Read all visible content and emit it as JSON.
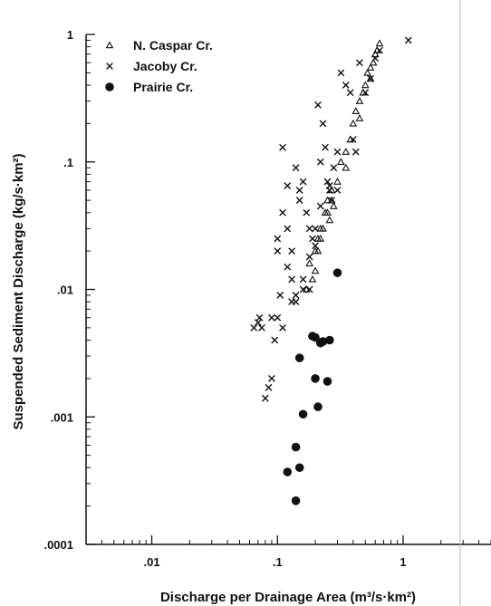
{
  "chart_data": {
    "type": "scatter",
    "title": "",
    "xlabel": "Discharge per Drainage Area (m³/s·km²)",
    "ylabel": "Suspended Sediment Discharge (kg/s·km²)",
    "x_scale": "log",
    "y_scale": "log",
    "xlim": [
      0.003,
      5
    ],
    "ylim": [
      0.0001,
      1
    ],
    "x_ticks": [
      ".01",
      ".1",
      "1"
    ],
    "y_ticks": [
      ".0001",
      ".001",
      ".01",
      ".1",
      "1"
    ],
    "legend_position": "top-left",
    "grid": false,
    "series": [
      {
        "name": "N. Caspar Cr.",
        "marker": "triangle",
        "color": "#111111",
        "x": [
          0.17,
          0.19,
          0.2,
          0.21,
          0.22,
          0.23,
          0.24,
          0.25,
          0.26,
          0.27,
          0.28,
          0.3,
          0.32,
          0.35,
          0.38,
          0.4,
          0.42,
          0.45,
          0.48,
          0.5,
          0.52,
          0.55,
          0.58,
          0.6,
          0.62,
          0.65,
          0.25,
          0.22,
          0.2,
          0.18,
          0.21,
          0.27,
          0.35,
          0.45,
          0.55
        ],
        "y": [
          0.01,
          0.012,
          0.014,
          0.02,
          0.025,
          0.03,
          0.04,
          0.05,
          0.035,
          0.06,
          0.045,
          0.07,
          0.1,
          0.12,
          0.15,
          0.2,
          0.25,
          0.3,
          0.35,
          0.4,
          0.5,
          0.55,
          0.6,
          0.7,
          0.75,
          0.85,
          0.04,
          0.03,
          0.02,
          0.016,
          0.025,
          0.05,
          0.09,
          0.22,
          0.45
        ]
      },
      {
        "name": "Jacoby Cr.",
        "marker": "x",
        "color": "#111111",
        "x": [
          0.065,
          0.07,
          0.072,
          0.075,
          0.08,
          0.085,
          0.09,
          0.095,
          0.1,
          0.1,
          0.1,
          0.105,
          0.11,
          0.11,
          0.12,
          0.12,
          0.13,
          0.13,
          0.14,
          0.14,
          0.15,
          0.15,
          0.16,
          0.16,
          0.17,
          0.18,
          0.18,
          0.19,
          0.2,
          0.2,
          0.21,
          0.22,
          0.23,
          0.24,
          0.25,
          0.26,
          0.27,
          0.28,
          0.3,
          0.3,
          0.32,
          0.35,
          0.38,
          0.4,
          0.42,
          0.45,
          0.5,
          0.55,
          0.6,
          0.65,
          1.1,
          0.14,
          0.16,
          0.13,
          0.12,
          0.18,
          0.22,
          0.26,
          0.09,
          0.11
        ],
        "y": [
          0.005,
          0.0055,
          0.006,
          0.005,
          0.0014,
          0.0017,
          0.002,
          0.004,
          0.006,
          0.02,
          0.025,
          0.009,
          0.13,
          0.04,
          0.015,
          0.065,
          0.02,
          0.012,
          0.09,
          0.008,
          0.06,
          0.05,
          0.07,
          0.01,
          0.04,
          0.03,
          0.018,
          0.025,
          0.03,
          0.022,
          0.28,
          0.1,
          0.2,
          0.13,
          0.07,
          0.065,
          0.05,
          0.09,
          0.12,
          0.06,
          0.5,
          0.4,
          0.35,
          0.15,
          0.12,
          0.6,
          0.35,
          0.45,
          0.65,
          0.75,
          0.9,
          0.009,
          0.012,
          0.008,
          0.03,
          0.01,
          0.045,
          0.06,
          0.006,
          0.005
        ]
      },
      {
        "name": "Prairie Cr.",
        "marker": "circle",
        "color": "#111111",
        "x": [
          0.12,
          0.14,
          0.14,
          0.15,
          0.15,
          0.16,
          0.19,
          0.2,
          0.2,
          0.21,
          0.22,
          0.23,
          0.25,
          0.26,
          0.3
        ],
        "y": [
          0.00037,
          0.00022,
          0.00058,
          0.0004,
          0.0029,
          0.00105,
          0.0043,
          0.002,
          0.0042,
          0.0012,
          0.0038,
          0.0039,
          0.0019,
          0.004,
          0.0135
        ]
      }
    ]
  }
}
